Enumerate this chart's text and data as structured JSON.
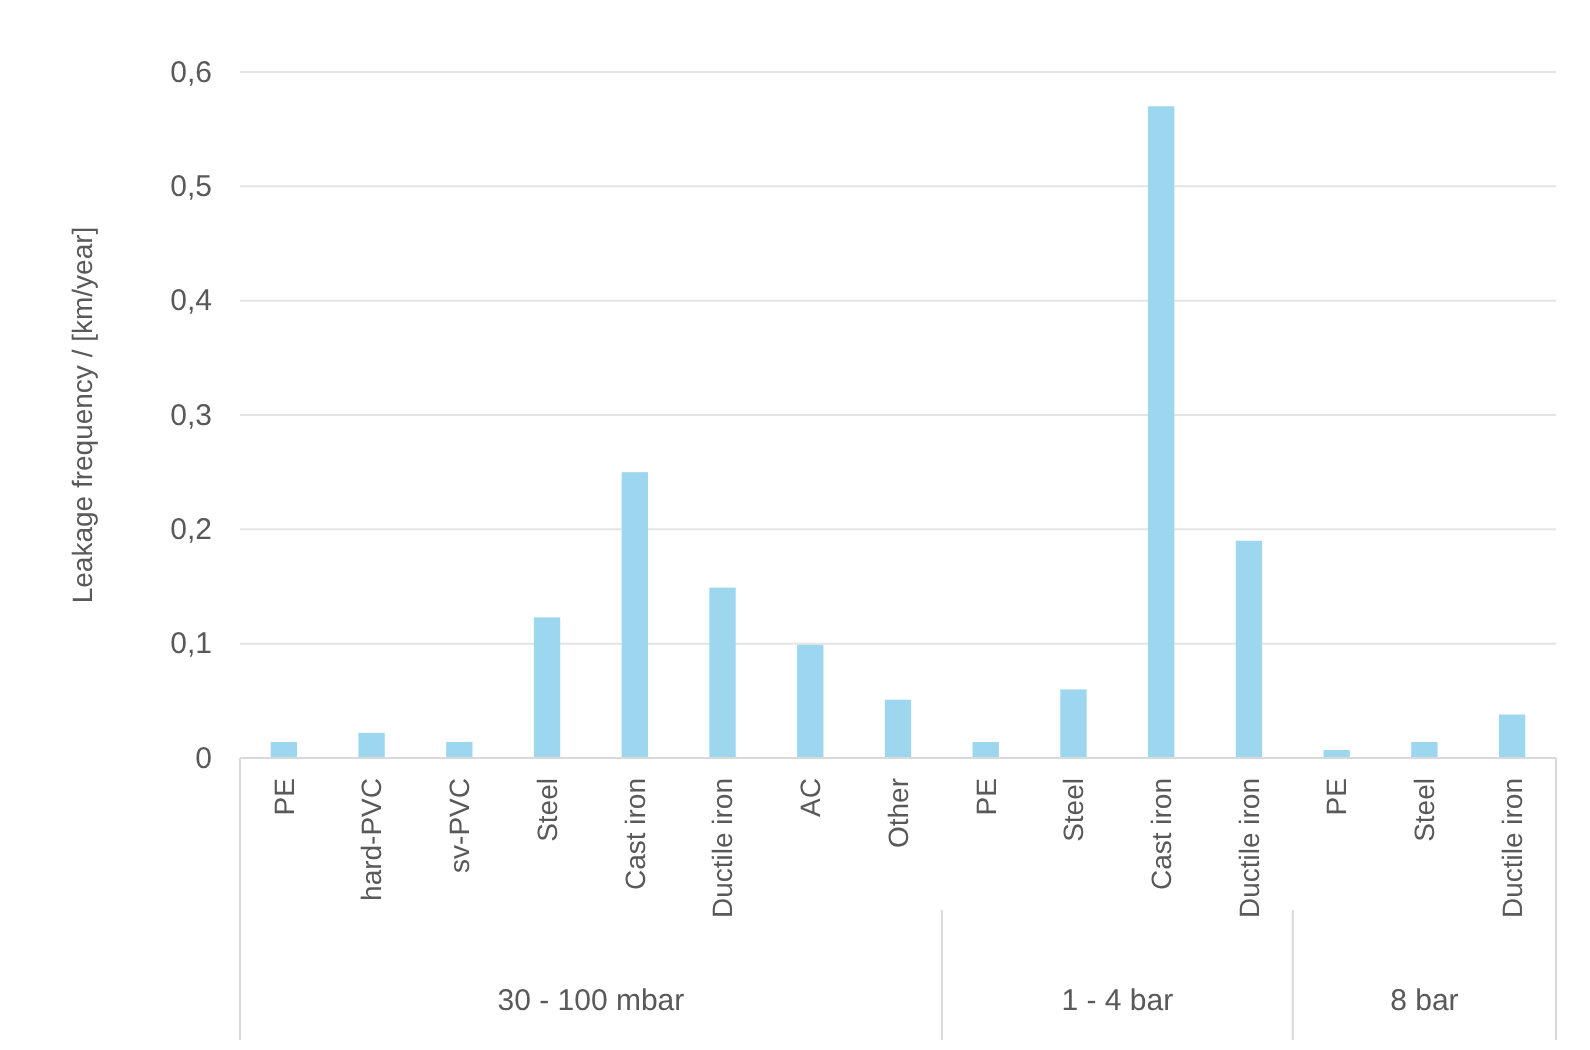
{
  "chart_data": {
    "type": "bar",
    "ylabel": "Leakage frequency / [km/year]",
    "categories": [
      "PE",
      "hard-PVC",
      "sv-PVC",
      "Steel",
      "Cast iron",
      "Ductile iron",
      "AC",
      "Other",
      "PE",
      "Steel",
      "Cast iron",
      "Ductile iron",
      "PE",
      "Steel",
      "Ductile iron"
    ],
    "values": [
      0.014,
      0.022,
      0.014,
      0.123,
      0.25,
      0.149,
      0.099,
      0.051,
      0.014,
      0.06,
      0.57,
      0.19,
      0.007,
      0.014,
      0.038
    ],
    "color": "#9dd6ef",
    "ylim": [
      0,
      0.6
    ],
    "yticks": [
      0,
      {
        "value": 0.1,
        "label": "0,1"
      },
      {
        "value": 0.2,
        "label": "0,2"
      },
      {
        "value": 0.3,
        "label": "0,3"
      },
      {
        "value": 0.4,
        "label": "0,4"
      },
      {
        "value": 0.5,
        "label": "0,5"
      },
      {
        "value": 0.6,
        "label": "0,6"
      }
    ],
    "grid": "y",
    "annotations": [
      "30 - 100 mbar",
      "1 - 4 bar",
      "8 bar"
    ]
  }
}
